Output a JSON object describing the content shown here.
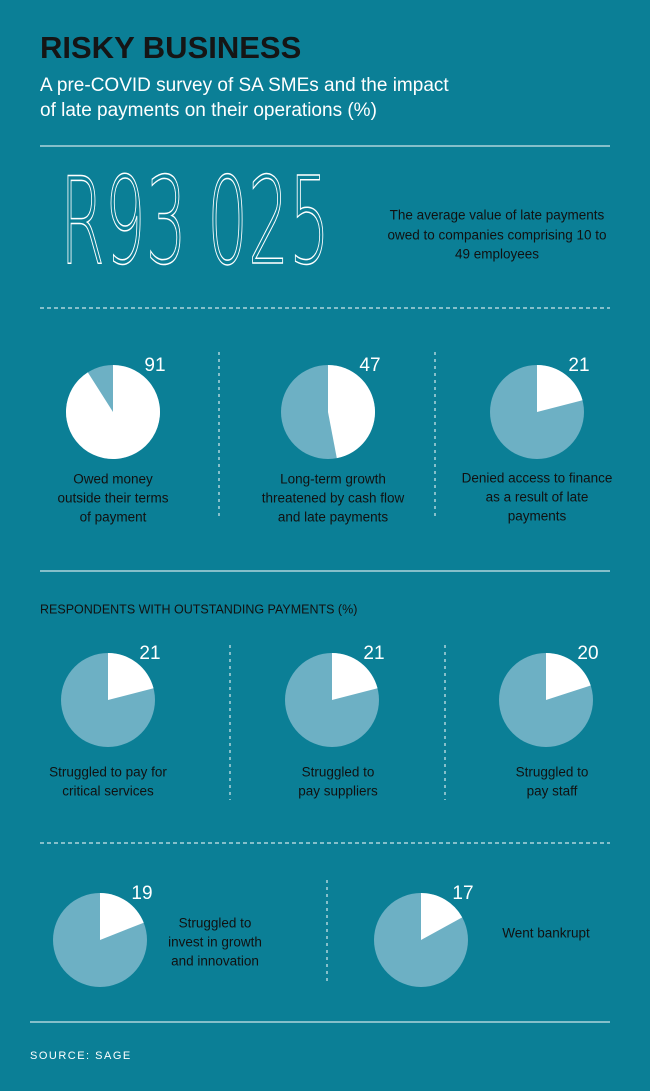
{
  "title": "RISKY BUSINESS",
  "subtitle_lines": [
    "A pre-COVID survey of SA SMEs and the impact",
    "of late payments on their operations (%)"
  ],
  "headline": {
    "value": "R93 025",
    "description_lines": [
      "The average value of late payments",
      "owed to companies comprising 10 to",
      "49 employees"
    ]
  },
  "section_title": "RESPONDENTS WITH OUTSTANDING PAYMENTS (%)",
  "source": "SOURCE: SAGE",
  "chart_data": [
    {
      "type": "pie",
      "value": 91,
      "label_lines": [
        "Owed money",
        "outside their terms",
        "of payment"
      ]
    },
    {
      "type": "pie",
      "value": 47,
      "label_lines": [
        "Long-term growth",
        "threatened by cash flow",
        "and late payments"
      ]
    },
    {
      "type": "pie",
      "value": 21,
      "label_lines": [
        "Denied access to finance",
        "as a result of late",
        "payments"
      ]
    },
    {
      "type": "pie",
      "value": 21,
      "label_lines": [
        "Struggled to pay for",
        "critical services"
      ]
    },
    {
      "type": "pie",
      "value": 21,
      "label_lines": [
        "Struggled to",
        "pay suppliers"
      ]
    },
    {
      "type": "pie",
      "value": 20,
      "label_lines": [
        "Struggled to",
        "pay staff"
      ]
    },
    {
      "type": "pie",
      "value": 19,
      "label_lines": [
        "Struggled to",
        "invest in growth",
        "and innovation"
      ]
    },
    {
      "type": "pie",
      "value": 17,
      "label_lines": [
        "Went bankrupt"
      ]
    }
  ]
}
